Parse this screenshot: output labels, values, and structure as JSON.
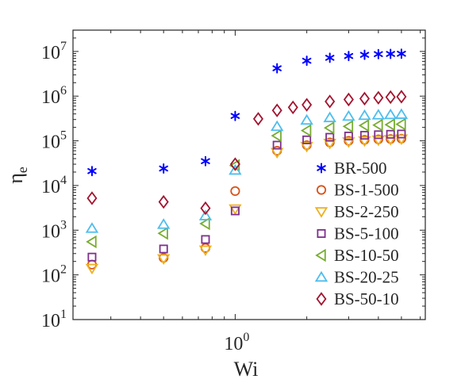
{
  "chart_data": {
    "type": "scatter",
    "xscale": "log",
    "yscale": "log",
    "xlabel": "Wi",
    "ylabel": "ηe",
    "ylabel_main": "η",
    "ylabel_sub": "e",
    "xlim": [
      0.208,
      6.3
    ],
    "ylim": [
      10,
      30000000
    ],
    "x_ticks": [
      {
        "base": "10",
        "exp": "0",
        "value": 1
      }
    ],
    "y_ticks": [
      {
        "base": "10",
        "exp": "1",
        "value": 10
      },
      {
        "base": "10",
        "exp": "2",
        "value": 100
      },
      {
        "base": "10",
        "exp": "3",
        "value": 1000
      },
      {
        "base": "10",
        "exp": "4",
        "value": 10000
      },
      {
        "base": "10",
        "exp": "5",
        "value": 100000
      },
      {
        "base": "10",
        "exp": "6",
        "value": 1000000
      },
      {
        "base": "10",
        "exp": "7",
        "value": 10000000
      }
    ],
    "grid": false,
    "legend_position": "right-inside",
    "series": [
      {
        "name": "BR-500",
        "marker": "asterisk",
        "color": "#0000ff",
        "x": [
          0.25,
          0.5,
          0.75,
          1.0,
          1.5,
          2.0,
          2.5,
          3.0,
          3.5,
          4.0,
          4.5,
          5.0
        ],
        "y": [
          21000,
          24000,
          35000,
          360000,
          4200000,
          6200000,
          7200000,
          7900000,
          8400000,
          8700000,
          8800000,
          8900000
        ]
      },
      {
        "name": "BS-1-500",
        "marker": "circle",
        "color": "#d95319",
        "x": [
          0.25,
          0.5,
          0.75,
          1.0,
          1.5,
          2.0,
          2.5,
          3.0,
          3.5,
          4.0,
          4.5,
          5.0
        ],
        "y": [
          170,
          240,
          400,
          7500,
          60000,
          80000,
          92000,
          100000,
          105000,
          108000,
          110000,
          112000
        ]
      },
      {
        "name": "BS-2-250",
        "marker": "triangle-down",
        "color": "#edb120",
        "x": [
          0.25,
          0.5,
          0.75,
          1.0,
          1.5,
          2.0,
          2.5,
          3.0,
          3.5,
          4.0,
          4.5,
          5.0
        ],
        "y": [
          140,
          230,
          360,
          3000,
          55000,
          75000,
          88000,
          95000,
          100000,
          104000,
          107000,
          110000
        ]
      },
      {
        "name": "BS-5-100",
        "marker": "square",
        "color": "#7e2f8e",
        "x": [
          0.25,
          0.5,
          0.75,
          1.0,
          1.5,
          2.0,
          2.5,
          3.0,
          3.5,
          4.0,
          4.5,
          5.0
        ],
        "y": [
          250,
          380,
          620,
          2700,
          80000,
          105000,
          120000,
          128000,
          133000,
          137000,
          140000,
          142000
        ]
      },
      {
        "name": "BS-10-50",
        "marker": "triangle-left",
        "color": "#77ac30",
        "x": [
          0.25,
          0.5,
          0.75,
          1.0,
          1.5,
          2.0,
          2.5,
          3.0,
          3.5,
          4.0,
          4.5,
          5.0
        ],
        "y": [
          550,
          850,
          1400,
          28000,
          130000,
          170000,
          195000,
          210000,
          220000,
          225000,
          230000,
          235000
        ]
      },
      {
        "name": "BS-20-25",
        "marker": "triangle-up",
        "color": "#4dbeee",
        "x": [
          0.25,
          0.5,
          0.75,
          1.0,
          1.5,
          2.0,
          2.5,
          3.0,
          3.5,
          4.0,
          4.5,
          5.0
        ],
        "y": [
          1100,
          1350,
          2100,
          22000,
          210000,
          290000,
          330000,
          355000,
          370000,
          380000,
          385000,
          390000
        ]
      },
      {
        "name": "BS-50-10",
        "marker": "diamond",
        "color": "#a2142f",
        "x": [
          0.25,
          0.5,
          0.75,
          1.0,
          1.25,
          1.5,
          1.75,
          2.0,
          2.5,
          3.0,
          3.5,
          4.0,
          4.5,
          5.0
        ],
        "y": [
          5200,
          4300,
          3100,
          30000,
          310000,
          480000,
          560000,
          640000,
          760000,
          840000,
          880000,
          920000,
          950000,
          970000
        ]
      }
    ]
  }
}
